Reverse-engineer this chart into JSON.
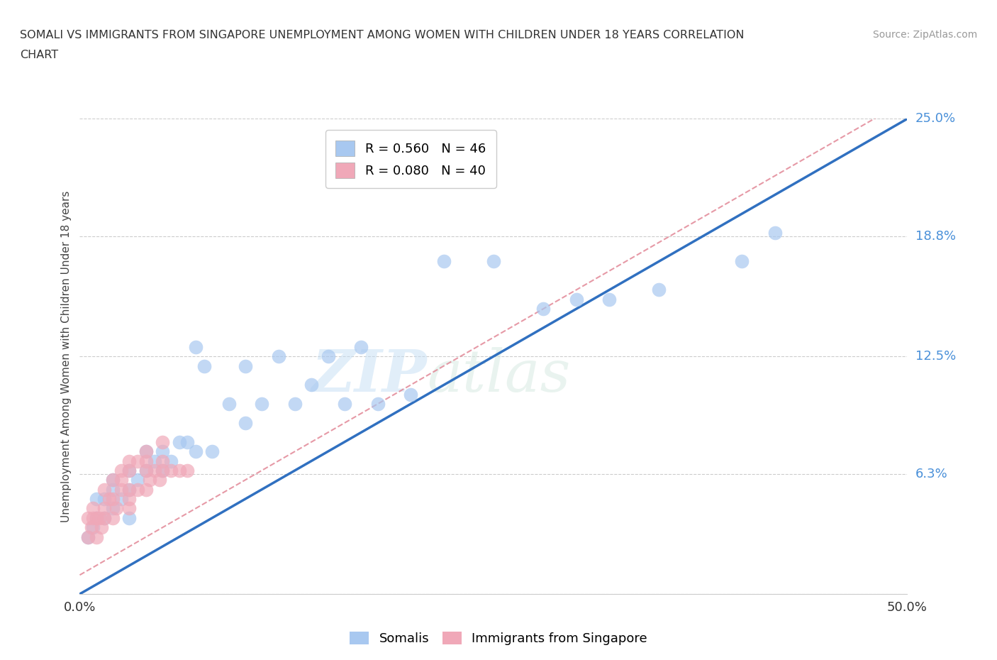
{
  "title_line1": "SOMALI VS IMMIGRANTS FROM SINGAPORE UNEMPLOYMENT AMONG WOMEN WITH CHILDREN UNDER 18 YEARS CORRELATION",
  "title_line2": "CHART",
  "source_text": "Source: ZipAtlas.com",
  "ylabel": "Unemployment Among Women with Children Under 18 years",
  "xlim": [
    0,
    0.5
  ],
  "ylim": [
    0,
    0.25
  ],
  "yticks": [
    0.0,
    0.063,
    0.125,
    0.188,
    0.25
  ],
  "ytick_labels": [
    "",
    "6.3%",
    "12.5%",
    "18.8%",
    "25.0%"
  ],
  "xtick_labels": [
    "0.0%",
    "50.0%"
  ],
  "legend_entries": [
    {
      "label": "R = 0.560   N = 46",
      "color": "#a8c8f0"
    },
    {
      "label": "R = 0.080   N = 40",
      "color": "#f0a8b8"
    }
  ],
  "somali_color": "#a8c8f0",
  "singapore_color": "#f0a8b8",
  "somali_trend_color": "#3070c0",
  "singapore_trend_color": "#e08090",
  "watermark_left": "ZIP",
  "watermark_right": "atlas",
  "background_color": "#ffffff",
  "somali_x": [
    0.005,
    0.008,
    0.01,
    0.01,
    0.015,
    0.015,
    0.02,
    0.02,
    0.02,
    0.025,
    0.03,
    0.03,
    0.03,
    0.035,
    0.04,
    0.04,
    0.045,
    0.05,
    0.05,
    0.055,
    0.06,
    0.065,
    0.07,
    0.07,
    0.075,
    0.08,
    0.09,
    0.1,
    0.1,
    0.11,
    0.12,
    0.13,
    0.14,
    0.15,
    0.16,
    0.17,
    0.18,
    0.2,
    0.22,
    0.25,
    0.28,
    0.3,
    0.32,
    0.35,
    0.4,
    0.42
  ],
  "somali_y": [
    0.03,
    0.035,
    0.04,
    0.05,
    0.04,
    0.05,
    0.045,
    0.055,
    0.06,
    0.05,
    0.04,
    0.055,
    0.065,
    0.06,
    0.065,
    0.075,
    0.07,
    0.065,
    0.075,
    0.07,
    0.08,
    0.08,
    0.075,
    0.13,
    0.12,
    0.075,
    0.1,
    0.09,
    0.12,
    0.1,
    0.125,
    0.1,
    0.11,
    0.125,
    0.1,
    0.13,
    0.1,
    0.105,
    0.175,
    0.175,
    0.15,
    0.155,
    0.155,
    0.16,
    0.175,
    0.19
  ],
  "singapore_x": [
    0.005,
    0.005,
    0.007,
    0.008,
    0.008,
    0.01,
    0.01,
    0.012,
    0.013,
    0.015,
    0.015,
    0.015,
    0.018,
    0.02,
    0.02,
    0.02,
    0.022,
    0.025,
    0.025,
    0.025,
    0.03,
    0.03,
    0.03,
    0.03,
    0.03,
    0.035,
    0.035,
    0.04,
    0.04,
    0.04,
    0.04,
    0.042,
    0.045,
    0.048,
    0.05,
    0.05,
    0.05,
    0.055,
    0.06,
    0.065
  ],
  "singapore_y": [
    0.03,
    0.04,
    0.035,
    0.04,
    0.045,
    0.03,
    0.04,
    0.04,
    0.035,
    0.04,
    0.045,
    0.055,
    0.05,
    0.04,
    0.05,
    0.06,
    0.045,
    0.055,
    0.06,
    0.065,
    0.045,
    0.05,
    0.055,
    0.065,
    0.07,
    0.055,
    0.07,
    0.055,
    0.065,
    0.07,
    0.075,
    0.06,
    0.065,
    0.06,
    0.065,
    0.07,
    0.08,
    0.065,
    0.065,
    0.065
  ],
  "somali_trend_slope": 0.49,
  "somali_trend_intercept": 0.0,
  "singapore_trend_slope": 0.49,
  "singapore_trend_intercept": 0.0
}
